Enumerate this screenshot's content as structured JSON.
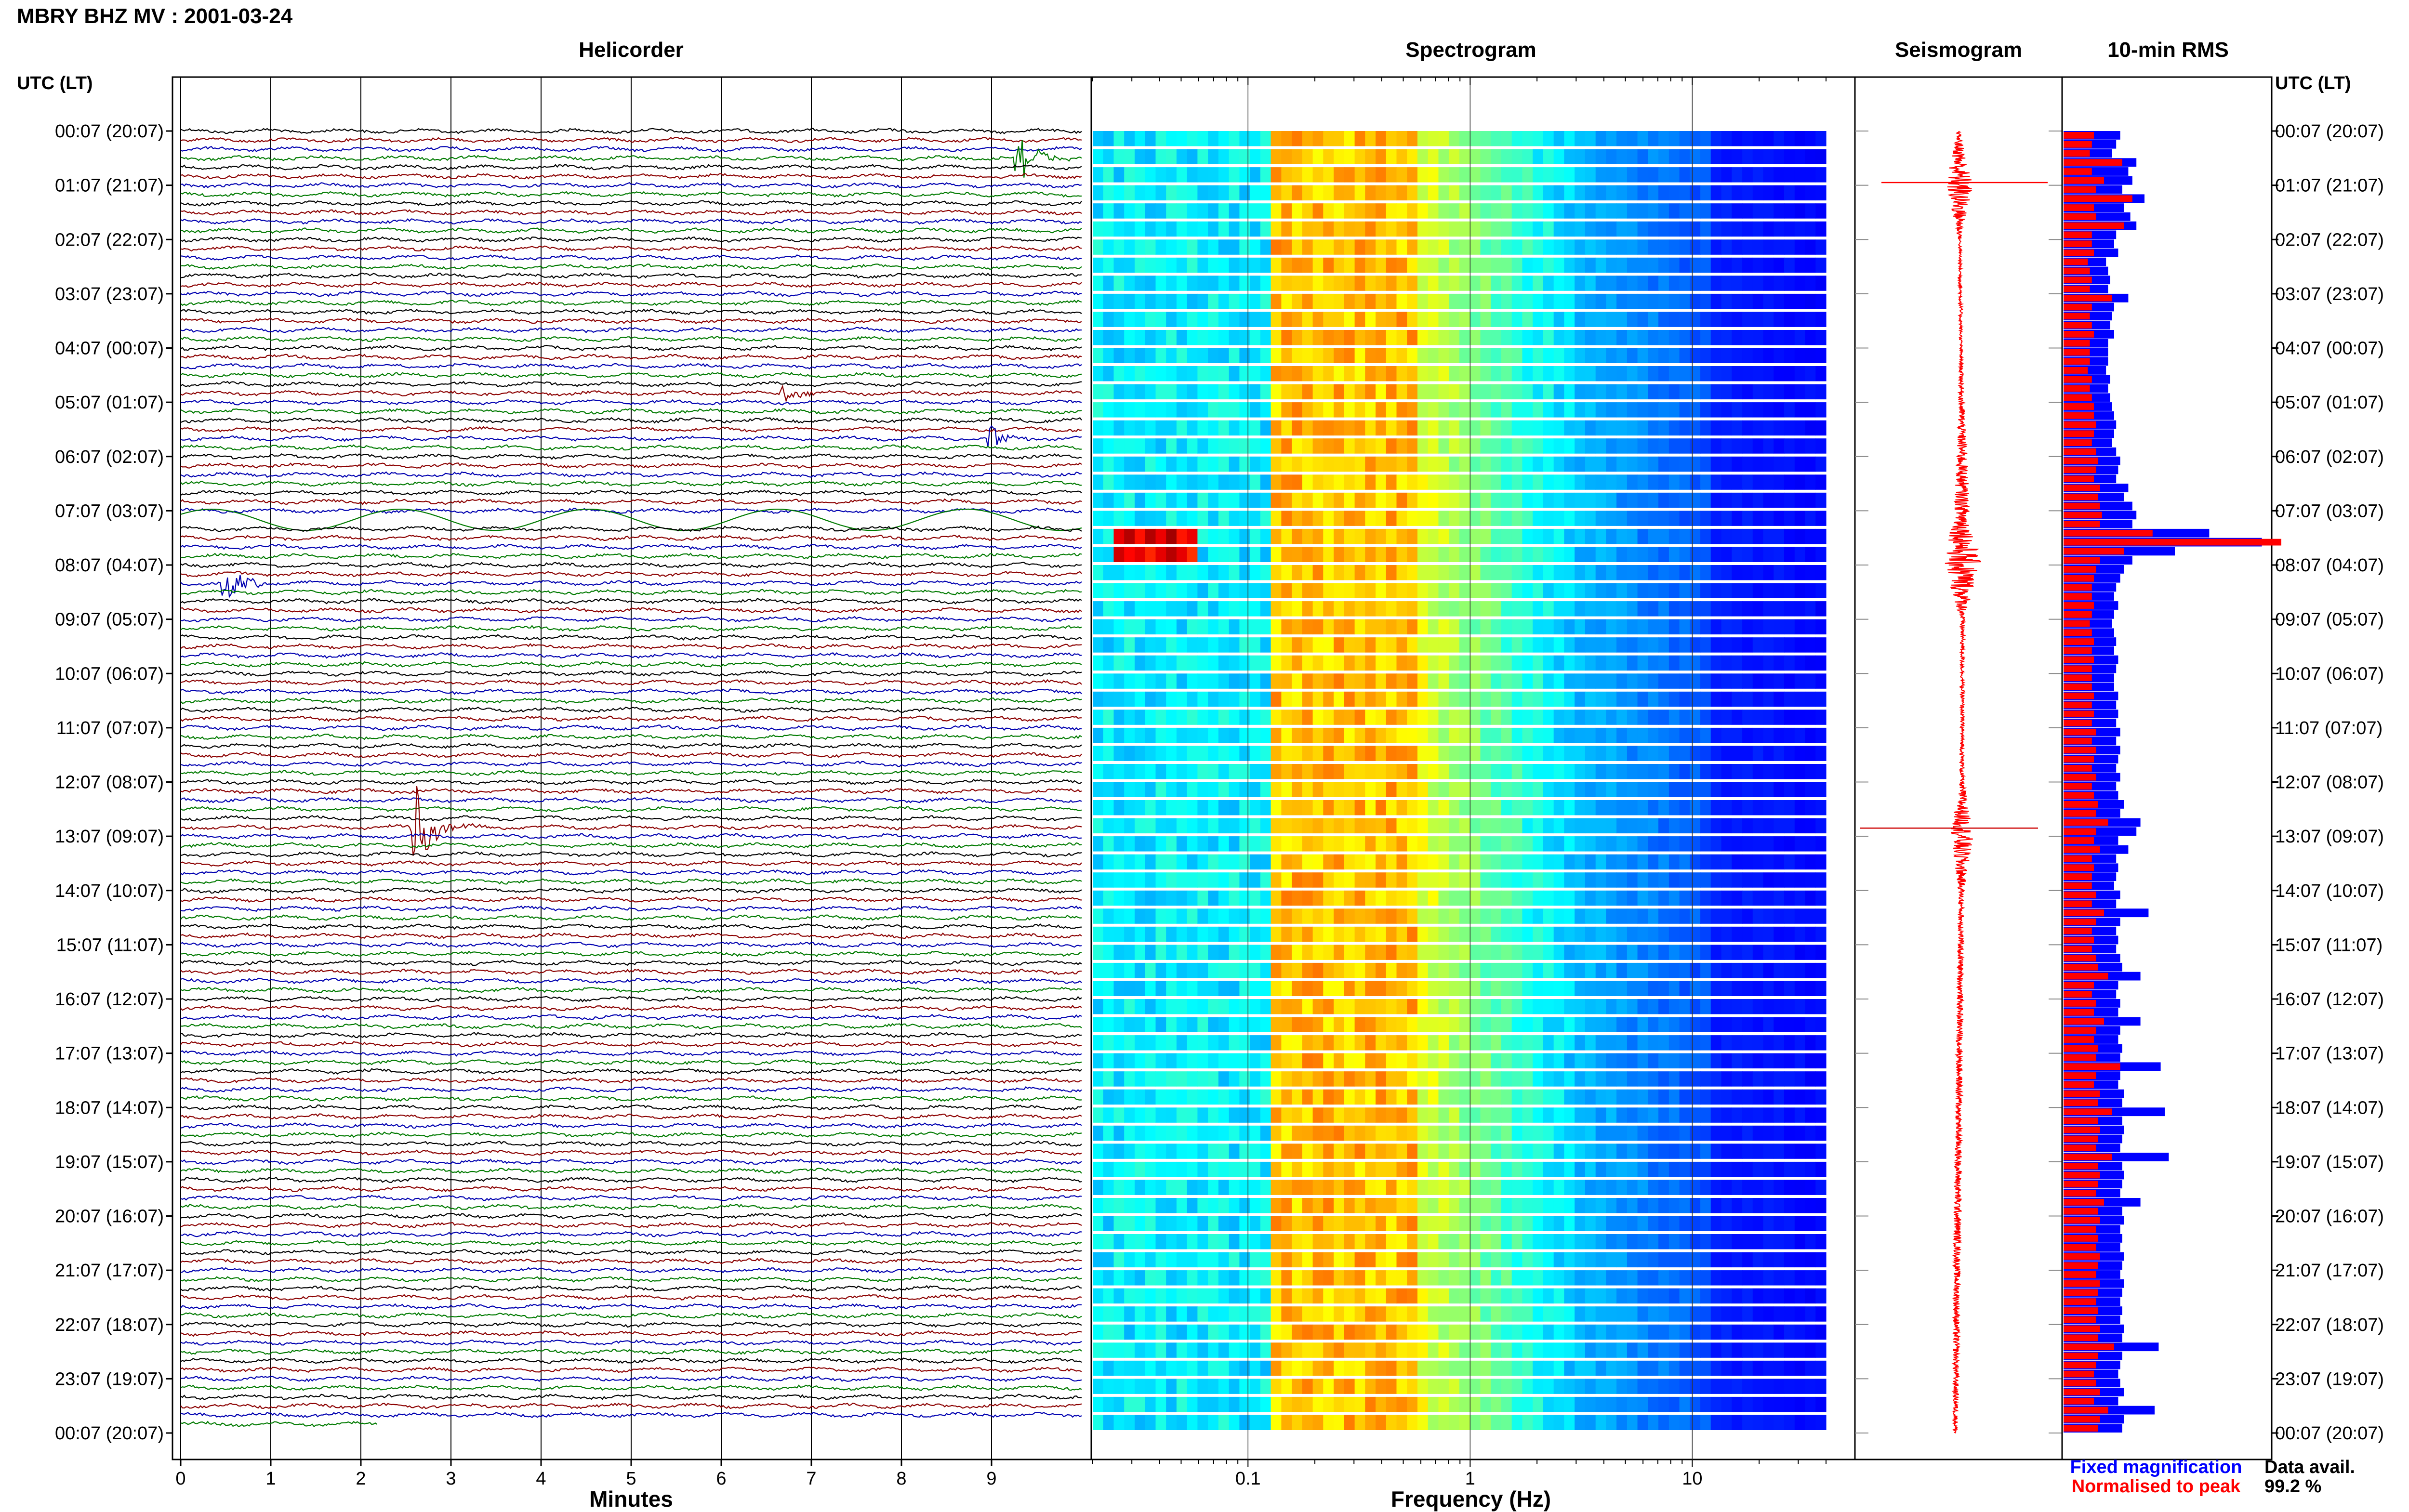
{
  "header": {
    "title": "MBRY BHZ MV : 2001-03-24"
  },
  "panels": {
    "helicorder": "Helicorder",
    "spectrogram": "Spectrogram",
    "seismogram": "Seismogram",
    "rms": "10-min RMS"
  },
  "axis_titles": {
    "time_left": "UTC (LT)",
    "time_right": "UTC (LT)",
    "helicorder_x": "Minutes",
    "spectrogram_x": "Frequency (Hz)"
  },
  "legend": {
    "fixed": "Fixed magnification",
    "normalised": "Normalised to peak",
    "availability_label": "Data avail.",
    "availability_value": "99.2 %"
  },
  "colors": {
    "fixed": "#0000ff",
    "normalised": "#ff0000",
    "trace_cycle": [
      "#000000",
      "#8b0000",
      "#0000b0",
      "#007a00"
    ]
  },
  "chart_data": [
    {
      "type": "line",
      "title": "Helicorder",
      "xlabel": "Minutes",
      "x_ticks": [
        "0",
        "1",
        "2",
        "3",
        "4",
        "5",
        "6",
        "7",
        "8",
        "9"
      ],
      "xlim": [
        0,
        10
      ],
      "row_minutes": 10,
      "rows": 144,
      "y_tick_labels": [
        "00:07 (20:07)",
        "01:07 (21:07)",
        "02:07 (22:07)",
        "03:07 (23:07)",
        "04:07 (00:07)",
        "05:07 (01:07)",
        "06:07 (02:07)",
        "07:07 (03:07)",
        "08:07 (04:07)",
        "09:07 (05:07)",
        "10:07 (06:07)",
        "11:07 (07:07)",
        "12:07 (08:07)",
        "13:07 (09:07)",
        "14:07 (10:07)",
        "15:07 (11:07)",
        "16:07 (12:07)",
        "17:07 (13:07)",
        "18:07 (14:07)",
        "19:07 (15:07)",
        "20:07 (16:07)",
        "21:07 (17:07)",
        "22:07 (18:07)",
        "23:07 (19:07)",
        "00:07 (20:07)"
      ],
      "events": [
        {
          "row": 3,
          "minute": 9.3,
          "amplitude": 4.0
        },
        {
          "row": 50,
          "minute": 0.5,
          "amplitude": 2.5
        },
        {
          "row": 77,
          "minute": 2.6,
          "amplitude": 5.0
        },
        {
          "row": 34,
          "minute": 9.0,
          "amplitude": 1.2
        },
        {
          "row": 29,
          "minute": 6.7,
          "amplitude": 1.0
        }
      ]
    },
    {
      "type": "heatmap",
      "title": "Spectrogram",
      "xlabel": "Frequency (Hz)",
      "x_scale": "log",
      "xlim": [
        0.02,
        40
      ],
      "x_ticks": [
        0.1,
        1,
        10
      ],
      "x_tick_labels": [
        "0.1",
        "1",
        "10"
      ],
      "rows": 72,
      "dominant_band_hz": [
        0.15,
        0.5
      ],
      "anomaly": {
        "rows": [
          22,
          23
        ],
        "freq_hz": [
          0.025,
          0.06
        ]
      }
    },
    {
      "type": "line",
      "title": "Seismogram",
      "x": [
        0,
        1,
        2,
        3,
        4,
        5,
        6,
        7,
        8,
        9,
        10,
        11,
        12,
        13,
        14,
        15,
        16,
        17,
        18,
        19,
        20,
        21,
        22,
        23,
        24
      ],
      "series": [
        {
          "values": [
            0.3,
            3.0,
            0.3,
            0.4,
            0.3,
            0.6,
            1.2,
            1.6,
            4.0,
            0.5,
            0.4,
            0.4,
            0.5,
            2.5,
            0.6,
            0.6,
            0.6,
            0.7,
            0.7,
            0.7,
            0.8,
            0.7,
            0.7,
            0.6,
            0.5
          ]
        }
      ]
    },
    {
      "type": "bar",
      "title": "10-min RMS",
      "series": [
        {
          "name": "Fixed magnification",
          "values": [
            2.8,
            2.6,
            2.4,
            3.6,
            3.2,
            3.4,
            2.9,
            4.0,
            3.0,
            3.3,
            3.6,
            2.6,
            2.5,
            2.7,
            2.1,
            2.2,
            2.3,
            2.2,
            3.2,
            2.5,
            2.4,
            2.3,
            2.5,
            2.2,
            2.2,
            2.2,
            2.1,
            2.3,
            2.2,
            2.3,
            2.4,
            2.5,
            2.6,
            2.5,
            2.4,
            2.6,
            2.8,
            2.7,
            2.6,
            3.2,
            3.0,
            3.4,
            3.6,
            3.4,
            7.2,
            9.8,
            5.5,
            3.4,
            3.0,
            2.8,
            2.6,
            2.5,
            2.7,
            2.5,
            2.4,
            2.5,
            2.6,
            2.5,
            2.7,
            2.6,
            2.5,
            2.5,
            2.7,
            2.6,
            2.7,
            2.6,
            2.8,
            2.6,
            2.8,
            2.7,
            2.6,
            2.8,
            2.6,
            2.7,
            3.0,
            2.8,
            3.8,
            3.6,
            2.7,
            3.2,
            2.6,
            2.7,
            2.6,
            2.5,
            2.8,
            2.6,
            4.2,
            2.8,
            2.6,
            2.7,
            2.6,
            2.8,
            2.9,
            3.8,
            2.7,
            2.6,
            2.8,
            2.7,
            3.8,
            2.8,
            2.7,
            2.9,
            2.8,
            4.8,
            2.8,
            2.7,
            3.0,
            2.9,
            5.0,
            2.9,
            3.0,
            2.9,
            2.8,
            5.2,
            2.9,
            3.0,
            2.9,
            2.8,
            3.8,
            2.9,
            3.0,
            2.8,
            2.9,
            2.8,
            3.0,
            2.9,
            2.8,
            3.0,
            2.9,
            2.8,
            2.9,
            2.8,
            3.0,
            2.9,
            4.7,
            2.9,
            2.8,
            2.7,
            2.8,
            3.0,
            2.7,
            4.5,
            3.0,
            2.9
          ]
        },
        {
          "name": "Normalised to peak",
          "values": [
            1.5,
            1.4,
            1.3,
            2.9,
            1.4,
            2.0,
            1.6,
            3.4,
            1.5,
            1.6,
            3.0,
            1.4,
            1.4,
            1.5,
            1.2,
            1.3,
            1.4,
            1.3,
            2.4,
            1.4,
            1.3,
            1.4,
            1.5,
            1.3,
            1.3,
            1.3,
            1.2,
            1.4,
            1.3,
            1.4,
            1.5,
            1.5,
            1.6,
            1.5,
            1.4,
            1.6,
            1.7,
            1.6,
            1.5,
            1.8,
            1.7,
            1.8,
            1.9,
            1.8,
            4.4,
            12.5,
            3.0,
            1.8,
            1.6,
            1.5,
            1.4,
            1.4,
            1.5,
            1.4,
            1.3,
            1.4,
            1.5,
            1.4,
            1.5,
            1.4,
            1.4,
            1.4,
            1.5,
            1.4,
            1.5,
            1.4,
            1.6,
            1.4,
            1.6,
            1.5,
            1.4,
            1.6,
            1.4,
            1.5,
            1.7,
            1.6,
            2.2,
            1.6,
            1.5,
            1.8,
            1.4,
            1.5,
            1.4,
            1.4,
            1.6,
            1.4,
            2.0,
            1.6,
            1.4,
            1.5,
            1.4,
            1.6,
            1.7,
            2.2,
            1.5,
            1.4,
            1.6,
            1.5,
            2.0,
            1.6,
            1.5,
            1.7,
            1.6,
            2.8,
            1.6,
            1.5,
            1.8,
            1.7,
            2.4,
            1.7,
            1.8,
            1.7,
            1.6,
            2.4,
            1.7,
            1.8,
            1.7,
            1.6,
            2.0,
            1.7,
            1.8,
            1.6,
            1.7,
            1.6,
            1.8,
            1.7,
            1.6,
            1.8,
            1.7,
            1.6,
            1.7,
            1.6,
            1.8,
            1.7,
            2.5,
            1.7,
            1.6,
            1.5,
            1.6,
            1.8,
            1.5,
            2.2,
            1.8,
            1.7
          ]
        }
      ]
    }
  ]
}
